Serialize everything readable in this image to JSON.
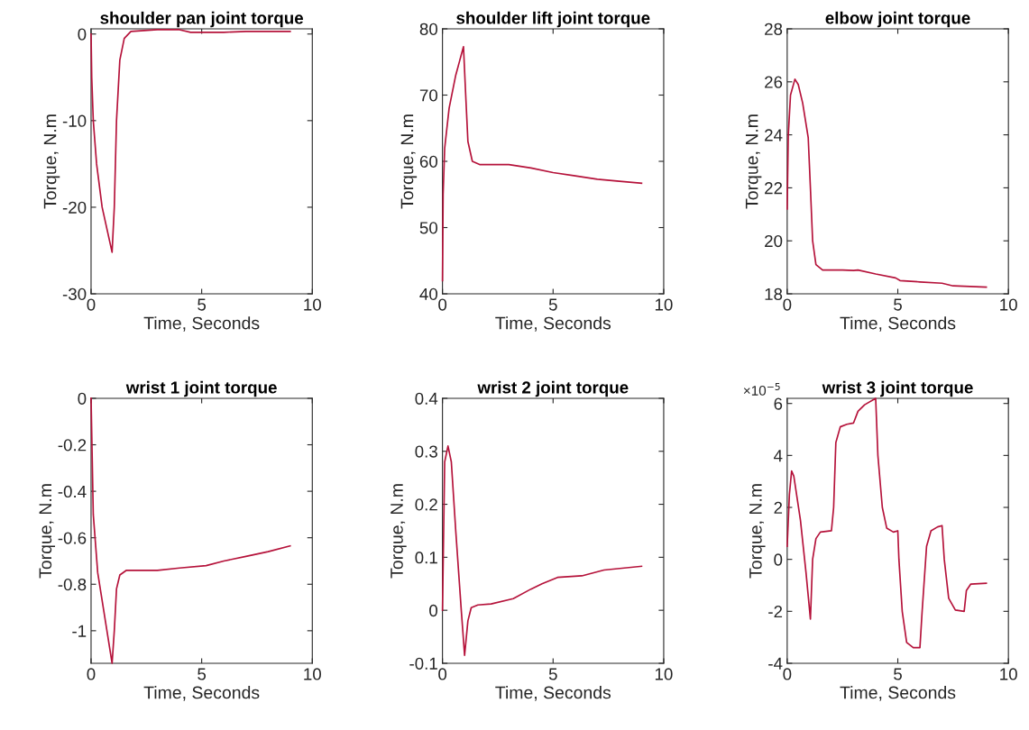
{
  "chart_data": [
    {
      "type": "line",
      "title": "shoulder pan joint torque",
      "xlabel": "Time, Seconds",
      "ylabel": "Torque, N.m",
      "xlim": [
        0,
        10
      ],
      "xticks": [
        0,
        5,
        10
      ],
      "ylim": [
        -30,
        0.6
      ],
      "yticks": [
        -30,
        -20,
        -10,
        0
      ],
      "x": [
        0,
        0.03,
        0.1,
        0.25,
        0.5,
        0.95,
        1.05,
        1.15,
        1.3,
        1.5,
        1.8,
        3,
        4,
        4.5,
        6,
        7,
        9
      ],
      "series": [
        {
          "color": "#b5123a",
          "values": [
            0,
            -5,
            -10,
            -15,
            -20,
            -25.2,
            -20,
            -10,
            -3,
            -0.5,
            0.3,
            0.5,
            0.5,
            0.2,
            0.2,
            0.3,
            0.3
          ]
        }
      ]
    },
    {
      "type": "line",
      "title": "shoulder lift joint torque",
      "xlabel": "Time, Seconds",
      "ylabel": "Torque, N.m",
      "xlim": [
        0,
        10
      ],
      "xticks": [
        0,
        5,
        10
      ],
      "ylim": [
        40,
        80
      ],
      "yticks": [
        40,
        50,
        60,
        70,
        80
      ],
      "x": [
        0,
        0.03,
        0.1,
        0.3,
        0.6,
        0.95,
        1.05,
        1.15,
        1.35,
        1.7,
        3,
        4,
        5,
        6,
        7,
        8,
        9
      ],
      "series": [
        {
          "color": "#b5123a",
          "values": [
            42,
            55,
            62,
            68,
            73,
            77.3,
            70,
            63,
            60,
            59.5,
            59.5,
            59,
            58.3,
            57.8,
            57.3,
            57,
            56.7
          ]
        }
      ]
    },
    {
      "type": "line",
      "title": "elbow joint torque",
      "xlabel": "Time, Seconds",
      "ylabel": "Torque, N.m",
      "xlim": [
        0,
        10
      ],
      "xticks": [
        0,
        5,
        10
      ],
      "ylim": [
        18,
        28
      ],
      "yticks": [
        18,
        20,
        22,
        24,
        26,
        28
      ],
      "x": [
        0,
        0.05,
        0.15,
        0.35,
        0.5,
        0.7,
        0.95,
        1.05,
        1.15,
        1.3,
        1.6,
        2.5,
        3,
        3.2,
        4,
        4.9,
        5.1,
        6,
        7,
        7.5,
        9
      ],
      "series": [
        {
          "color": "#b5123a",
          "values": [
            21.2,
            24,
            25.5,
            26.1,
            25.9,
            25.2,
            23.9,
            22,
            20,
            19.1,
            18.9,
            18.9,
            18.88,
            18.9,
            18.75,
            18.6,
            18.5,
            18.45,
            18.4,
            18.3,
            18.25
          ]
        }
      ]
    },
    {
      "type": "line",
      "title": "wrist 1 joint torque",
      "xlabel": "Time, Seconds",
      "ylabel": "Torque, N.m",
      "xlim": [
        0,
        10
      ],
      "xticks": [
        0,
        5,
        10
      ],
      "ylim": [
        -1.14,
        0
      ],
      "yticks": [
        -1,
        -0.8,
        -0.6,
        -0.4,
        -0.2,
        0
      ],
      "x": [
        0,
        0.1,
        0.3,
        0.95,
        1.05,
        1.15,
        1.3,
        1.6,
        3,
        4,
        5.2,
        6,
        7,
        8,
        9
      ],
      "series": [
        {
          "color": "#b5123a",
          "values": [
            0,
            -0.5,
            -0.75,
            -1.14,
            -1.0,
            -0.82,
            -0.76,
            -0.74,
            -0.74,
            -0.73,
            -0.72,
            -0.7,
            -0.68,
            -0.66,
            -0.635
          ]
        }
      ]
    },
    {
      "type": "line",
      "title": "wrist 2 joint torque",
      "xlabel": "Time, Seconds",
      "ylabel": "Torque, N.m",
      "xlim": [
        0,
        10
      ],
      "xticks": [
        0,
        5,
        10
      ],
      "ylim": [
        -0.1,
        0.4
      ],
      "yticks": [
        -0.1,
        0,
        0.1,
        0.2,
        0.3,
        0.4
      ],
      "x": [
        0,
        0.1,
        0.25,
        0.4,
        0.6,
        0.85,
        1.0,
        1.15,
        1.3,
        1.6,
        2.2,
        3.2,
        4,
        4.5,
        5.2,
        6.3,
        7.3,
        9
      ],
      "series": [
        {
          "color": "#b5123a",
          "values": [
            0,
            0.28,
            0.31,
            0.28,
            0.15,
            0.0,
            -0.085,
            -0.02,
            0.005,
            0.01,
            0.012,
            0.022,
            0.04,
            0.05,
            0.062,
            0.065,
            0.076,
            0.083
          ]
        }
      ]
    },
    {
      "type": "line",
      "title": "wrist 3 joint torque",
      "xlabel": "Time, Seconds",
      "ylabel": "Torque, N.m",
      "xlim": [
        0,
        10
      ],
      "xticks": [
        0,
        5,
        10
      ],
      "ylim": [
        -4,
        6.2
      ],
      "yticks": [
        -4,
        -2,
        0,
        2,
        4,
        6
      ],
      "annotations": [
        "×10$^{−5}$"
      ],
      "x": [
        0,
        0.1,
        0.2,
        0.3,
        0.6,
        0.85,
        1.05,
        1.15,
        1.3,
        1.5,
        2.0,
        2.1,
        2.2,
        2.4,
        2.7,
        3.0,
        3.2,
        3.5,
        4.0,
        4.1,
        4.3,
        4.5,
        4.8,
        5.0,
        5.05,
        5.2,
        5.4,
        5.7,
        6.0,
        6.1,
        6.3,
        6.5,
        6.8,
        7.0,
        7.1,
        7.3,
        7.6,
        8.0,
        8.1,
        8.3,
        9
      ],
      "series": [
        {
          "color": "#b5123a",
          "values": [
            0.5,
            2.5,
            3.4,
            3.2,
            1.5,
            -0.5,
            -2.3,
            0,
            0.8,
            1.05,
            1.1,
            2,
            4.5,
            5.1,
            5.2,
            5.25,
            5.7,
            5.95,
            6.2,
            4,
            2,
            1.2,
            1.05,
            1.1,
            0,
            -2,
            -3.2,
            -3.4,
            -3.4,
            -2,
            0.5,
            1.1,
            1.25,
            1.3,
            0,
            -1.5,
            -1.95,
            -2.0,
            -1.2,
            -0.95,
            -0.92
          ]
        }
      ]
    }
  ]
}
